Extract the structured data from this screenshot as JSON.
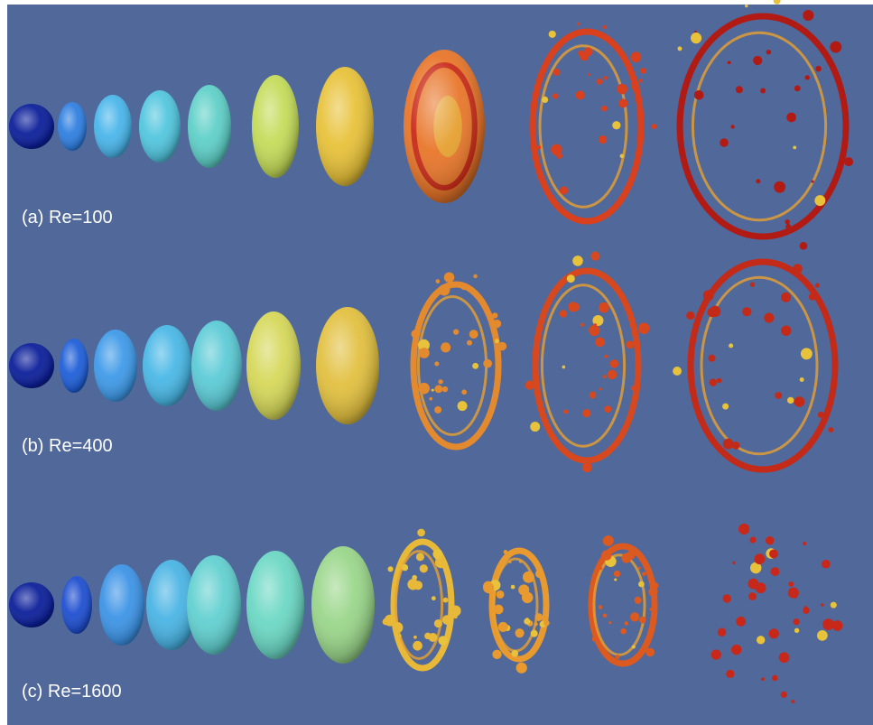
{
  "panels": [
    {
      "label": "(a) Re=100"
    },
    {
      "label": "(b) Re=400"
    },
    {
      "label": "(c) Re=1600"
    }
  ]
}
